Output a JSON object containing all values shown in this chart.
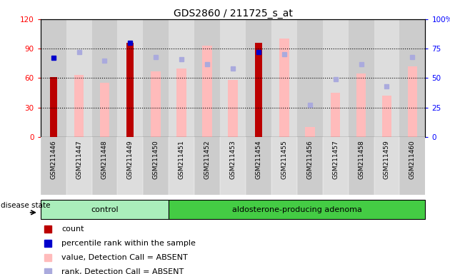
{
  "title": "GDS2860 / 211725_s_at",
  "samples": [
    "GSM211446",
    "GSM211447",
    "GSM211448",
    "GSM211449",
    "GSM211450",
    "GSM211451",
    "GSM211452",
    "GSM211453",
    "GSM211454",
    "GSM211455",
    "GSM211456",
    "GSM211457",
    "GSM211458",
    "GSM211459",
    "GSM211460"
  ],
  "count_values": [
    61,
    0,
    0,
    96,
    0,
    0,
    0,
    0,
    96,
    0,
    0,
    0,
    0,
    0,
    0
  ],
  "percentile_rank_values": [
    67,
    0,
    0,
    80,
    0,
    0,
    0,
    0,
    72,
    0,
    0,
    0,
    0,
    0,
    0
  ],
  "value_absent": [
    0,
    63,
    55,
    0,
    67,
    70,
    93,
    58,
    0,
    100,
    10,
    45,
    65,
    42,
    72
  ],
  "rank_absent": [
    0,
    72,
    65,
    0,
    68,
    66,
    62,
    58,
    0,
    70,
    27,
    49,
    62,
    43,
    68
  ],
  "n_control": 5,
  "n_adenoma": 10,
  "ylim_left": [
    0,
    120
  ],
  "ylim_right": [
    0,
    100
  ],
  "yticks_left": [
    0,
    30,
    60,
    90,
    120
  ],
  "yticks_right": [
    0,
    25,
    50,
    75,
    100
  ],
  "bar_color_count": "#bb0000",
  "bar_color_value_absent": "#ffbbbb",
  "dot_color_percentile": "#0000cc",
  "dot_color_rank_absent": "#aaaadd",
  "bg_color_plot": "#ffffff",
  "bg_color_tick_even": "#cccccc",
  "bg_color_tick_odd": "#dddddd",
  "control_color_light": "#aaeebb",
  "control_color_dark": "#44cc66",
  "adenoma_color": "#44cc44",
  "disease_label": "disease state",
  "control_label": "control",
  "adenoma_label": "aldosterone-producing adenoma",
  "legend_items": [
    "count",
    "percentile rank within the sample",
    "value, Detection Call = ABSENT",
    "rank, Detection Call = ABSENT"
  ],
  "legend_colors": [
    "#bb0000",
    "#0000cc",
    "#ffbbbb",
    "#aaaadd"
  ]
}
